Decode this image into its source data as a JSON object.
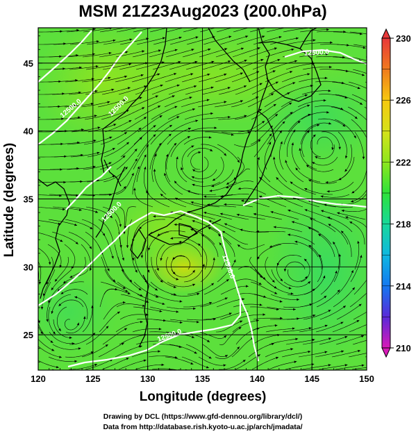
{
  "title": "MSM 21Z23Aug2023 (200.0hPa)",
  "xlabel": "Longitude (degrees)",
  "ylabel": "Latitude  (degrees)",
  "x_ticks": [
    "120",
    "125",
    "130",
    "135",
    "140",
    "145",
    "150"
  ],
  "y_ticks": [
    "25",
    "30",
    "35",
    "40",
    "45"
  ],
  "colorbar": {
    "ticks": [
      "230",
      "226",
      "222",
      "218",
      "214",
      "210"
    ],
    "min": 210,
    "max": 230
  },
  "contour_labels": [
    "12500.0",
    "12500.0",
    "12500.0",
    "12500.0",
    "12500.0",
    "12500.0"
  ],
  "credits": {
    "line1": "Drawing by DCL (https://www.gfd-dennou.org/library/dcl/)",
    "line2": "Data from http://database.rish.kyoto-u.ac.jp/arch/jmadata/"
  },
  "chart_data": {
    "type": "heatmap",
    "title": "MSM 21Z23Aug2023 (200.0hPa)",
    "xlabel": "Longitude (degrees)",
    "ylabel": "Latitude  (degrees)",
    "xlim": [
      120,
      150
    ],
    "ylim": [
      22.4,
      47.6
    ],
    "colorbar_range": [
      210,
      230
    ],
    "contour_value": 12500.0,
    "grid": true,
    "legend": "right (colorbar)"
  }
}
